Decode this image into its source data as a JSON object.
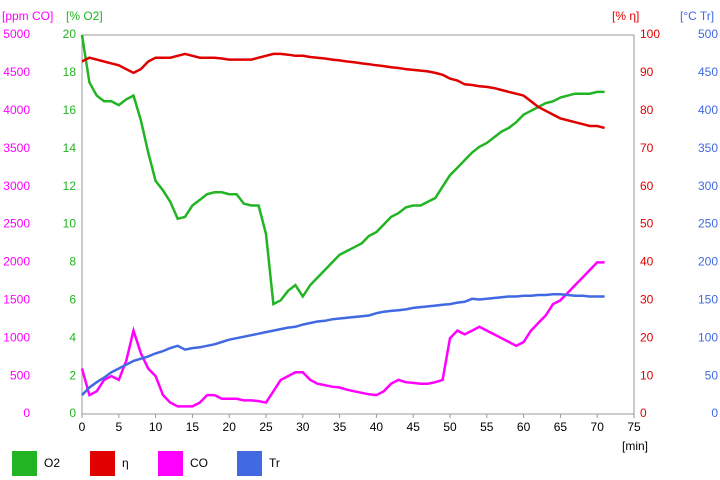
{
  "chart_data": {
    "type": "line",
    "x_label": "[min]",
    "xlim": [
      0,
      75
    ],
    "xticks": [
      0,
      5,
      10,
      15,
      20,
      25,
      30,
      35,
      40,
      45,
      50,
      55,
      60,
      65,
      70,
      75
    ],
    "y_axes": [
      {
        "label": "[ppm CO]",
        "side": "left",
        "color": "#ff00ff",
        "lim": [
          0,
          5000
        ],
        "ticks": [
          0,
          500,
          1000,
          1500,
          2000,
          2500,
          3000,
          3500,
          4000,
          4500,
          5000
        ]
      },
      {
        "label": "[% O2]",
        "side": "left",
        "color": "#22b422",
        "lim": [
          0,
          20
        ],
        "ticks": [
          0,
          2,
          4,
          6,
          8,
          10,
          12,
          14,
          16,
          18,
          20
        ]
      },
      {
        "label": "[% η]",
        "side": "right",
        "color": "#e00000",
        "lim": [
          0,
          100
        ],
        "ticks": [
          0,
          10,
          20,
          30,
          40,
          50,
          60,
          70,
          80,
          90,
          100
        ]
      },
      {
        "label": "[°C Tr]",
        "side": "right",
        "color": "#4169e1",
        "lim": [
          0,
          500
        ],
        "ticks": [
          0,
          50,
          100,
          150,
          200,
          250,
          300,
          350,
          400,
          450,
          500
        ]
      }
    ],
    "x": [
      0,
      1,
      2,
      3,
      4,
      5,
      6,
      7,
      8,
      9,
      10,
      11,
      12,
      13,
      14,
      15,
      16,
      17,
      18,
      19,
      20,
      21,
      22,
      23,
      24,
      25,
      26,
      27,
      28,
      29,
      30,
      31,
      32,
      33,
      34,
      35,
      36,
      37,
      38,
      39,
      40,
      41,
      42,
      43,
      44,
      45,
      46,
      47,
      48,
      49,
      50,
      51,
      52,
      53,
      54,
      55,
      56,
      57,
      58,
      59,
      60,
      61,
      62,
      63,
      64,
      65,
      66,
      67,
      68,
      69,
      70,
      71
    ],
    "series": [
      {
        "name": "O2",
        "color": "#22b422",
        "axis": 1,
        "values": [
          20,
          17.5,
          16.8,
          16.5,
          16.5,
          16.3,
          16.6,
          16.8,
          15.5,
          13.8,
          12.3,
          11.8,
          11.2,
          10.3,
          10.4,
          11,
          11.3,
          11.6,
          11.7,
          11.7,
          11.6,
          11.6,
          11.1,
          11,
          11,
          9.5,
          5.8,
          6,
          6.5,
          6.8,
          6.2,
          6.8,
          7.2,
          7.6,
          8,
          8.4,
          8.6,
          8.8,
          9,
          9.4,
          9.6,
          10,
          10.4,
          10.6,
          10.9,
          11,
          11,
          11.2,
          11.4,
          12,
          12.6,
          13,
          13.4,
          13.8,
          14.1,
          14.3,
          14.6,
          14.9,
          15.1,
          15.4,
          15.8,
          16,
          16.2,
          16.4,
          16.5,
          16.7,
          16.8,
          16.9,
          16.9,
          16.9,
          17,
          17
        ]
      },
      {
        "name": "η",
        "color": "#e00000",
        "axis": 2,
        "values": [
          93,
          94,
          93.5,
          93,
          92.5,
          92,
          91,
          90,
          91,
          93,
          94,
          94,
          94,
          94.5,
          95,
          94.5,
          94,
          94,
          94,
          93.8,
          93.5,
          93.5,
          93.5,
          93.5,
          94,
          94.5,
          95,
          95,
          94.8,
          94.5,
          94.5,
          94.2,
          94,
          93.8,
          93.5,
          93.3,
          93,
          92.8,
          92.5,
          92.3,
          92,
          91.8,
          91.5,
          91.3,
          91,
          90.8,
          90.6,
          90.4,
          90,
          89.5,
          88.5,
          88,
          87,
          86.8,
          86.5,
          86.3,
          86,
          85.5,
          85,
          84.5,
          84,
          82.5,
          81,
          80,
          79,
          78,
          77.5,
          77,
          76.5,
          76,
          76,
          75.5
        ]
      },
      {
        "name": "CO",
        "color": "#ff00ff",
        "axis": 0,
        "values": [
          600,
          250,
          300,
          450,
          500,
          450,
          700,
          1100,
          800,
          600,
          500,
          250,
          150,
          100,
          100,
          100,
          150,
          250,
          250,
          200,
          200,
          200,
          180,
          180,
          170,
          150,
          300,
          450,
          500,
          550,
          550,
          450,
          400,
          380,
          360,
          350,
          320,
          300,
          280,
          260,
          250,
          300,
          400,
          450,
          420,
          410,
          400,
          400,
          420,
          450,
          1000,
          1100,
          1050,
          1100,
          1150,
          1100,
          1050,
          1000,
          950,
          900,
          950,
          1100,
          1200,
          1300,
          1450,
          1500,
          1600,
          1700,
          1800,
          1900,
          2000,
          2000
        ]
      },
      {
        "name": "Tr",
        "color": "#4169e1",
        "axis": 3,
        "values": [
          25,
          35,
          42,
          48,
          55,
          60,
          65,
          70,
          73,
          76,
          80,
          83,
          87,
          90,
          85,
          87,
          88,
          90,
          92,
          95,
          98,
          100,
          102,
          104,
          106,
          108,
          110,
          112,
          114,
          115,
          118,
          120,
          122,
          123,
          125,
          126,
          127,
          128,
          129,
          130,
          133,
          135,
          136,
          137,
          138,
          140,
          141,
          142,
          143,
          144,
          145,
          147,
          148,
          152,
          151,
          152,
          153,
          154,
          155,
          155,
          156,
          156,
          157,
          157,
          158,
          158,
          157,
          156,
          156,
          155,
          155,
          155
        ]
      }
    ]
  }
}
